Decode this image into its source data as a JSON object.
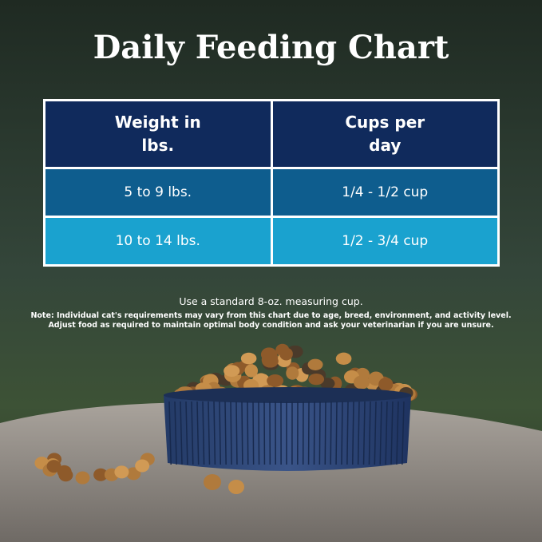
{
  "title": "Daily Feeding Chart",
  "table": {
    "header": [
      "Weight in lbs.",
      "Cups per day"
    ],
    "rows": [
      [
        "5 to 9 lbs.",
        "1/4 - 1/2 cup"
      ],
      [
        "10 to 14 lbs.",
        "1/2 - 3/4 cup"
      ]
    ]
  },
  "instruction": "Use a standard 8-oz. measuring cup.",
  "note": [
    "Note: Individual cat's requirements may vary from this chart due to age, breed, environment, and activity level.",
    "Adjust food as required to maintain optimal body condition and ask your veterinarian if you are unsure."
  ]
}
